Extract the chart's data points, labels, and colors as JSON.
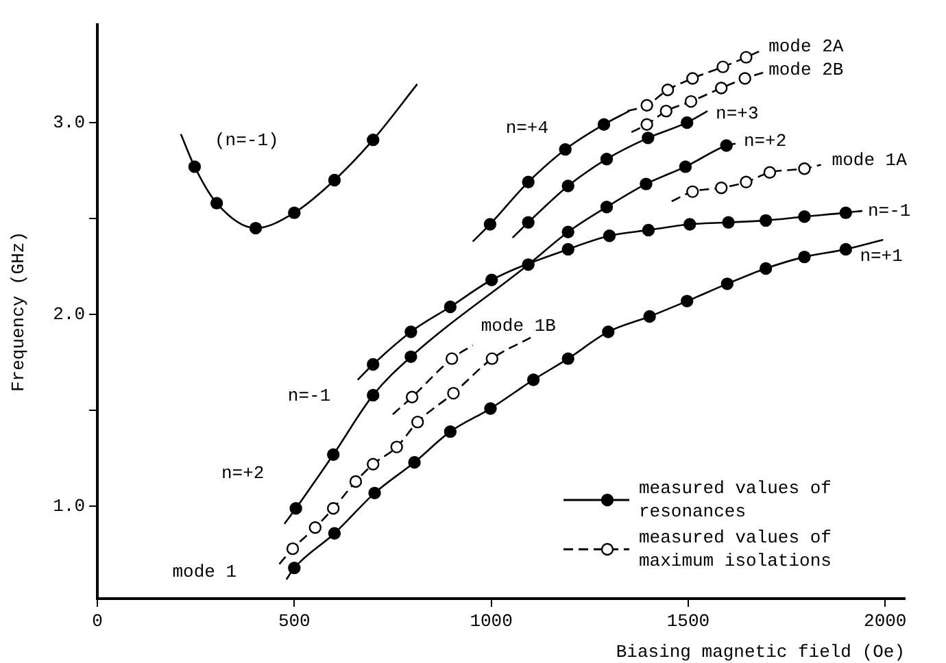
{
  "chart_data": {
    "type": "line",
    "xlabel": "Biasing magnetic field (Oe)",
    "ylabel": "Frequency (GHz)",
    "xlim": [
      0,
      2050
    ],
    "ylim": [
      0.52,
      3.51
    ],
    "xticks": [
      0,
      500,
      1000,
      1500,
      2000
    ],
    "yticks": [
      {
        "value": 1,
        "label": "1.0"
      },
      {
        "value": 1.5,
        "label": null
      },
      {
        "value": 2,
        "label": "2.0"
      },
      {
        "value": 2.5,
        "label": null
      },
      {
        "value": 3,
        "label": "3.0"
      }
    ],
    "grid": false,
    "legend": "bottom right",
    "series": [
      {
        "name": "(n=-1)",
        "color": "#000000",
        "marker": "none",
        "line_style": "solid",
        "x": [
          212,
          247,
          303,
          402,
          500,
          602,
          700,
          812
        ],
        "values": [
          2.94,
          2.77,
          2.58,
          2.45,
          2.53,
          2.7,
          2.91,
          3.2
        ]
      },
      {
        "name": "n=+1",
        "color": "#000000",
        "marker": "none",
        "line_style": "solid",
        "x": [
          480,
          500,
          602,
          704,
          805,
          896,
          998,
          1107,
          1195,
          1297,
          1402,
          1497,
          1599,
          1697,
          1795,
          1900,
          1995
        ],
        "values": [
          0.62,
          0.68,
          0.86,
          1.07,
          1.23,
          1.39,
          1.51,
          1.66,
          1.77,
          1.91,
          1.99,
          2.07,
          2.16,
          2.24,
          2.3,
          2.34,
          2.39
        ]
      },
      {
        "name": "n=+2",
        "color": "#000000",
        "marker": "none",
        "line_style": "solid",
        "x": [
          475,
          504,
          599,
          700,
          796,
          1094,
          1195,
          1293,
          1393,
          1493,
          1597,
          1620
        ],
        "values": [
          0.91,
          0.99,
          1.27,
          1.58,
          1.78,
          2.26,
          2.43,
          2.56,
          2.68,
          2.77,
          2.88,
          2.89
        ]
      },
      {
        "name": "n=-1",
        "color": "#000000",
        "marker": "none",
        "line_style": "solid",
        "x": [
          661,
          700,
          796,
          896,
          1001,
          1195,
          1300,
          1399,
          1504,
          1602,
          1697,
          1795,
          1900,
          1942
        ],
        "values": [
          1.66,
          1.74,
          1.91,
          2.04,
          2.18,
          2.34,
          2.41,
          2.44,
          2.47,
          2.48,
          2.49,
          2.51,
          2.53,
          2.54
        ]
      },
      {
        "name": "n=+3",
        "color": "#000000",
        "marker": "none",
        "line_style": "solid",
        "x": [
          1054,
          1094,
          1195,
          1293,
          1398,
          1497,
          1549
        ],
        "values": [
          2.4,
          2.48,
          2.67,
          2.81,
          2.92,
          3.0,
          3.06
        ]
      },
      {
        "name": "n=+4",
        "color": "#000000",
        "marker": "none",
        "line_style": "solid",
        "x": [
          953,
          997,
          1094,
          1188,
          1286,
          1350
        ],
        "values": [
          2.38,
          2.47,
          2.69,
          2.86,
          2.99,
          3.06
        ]
      },
      {
        "name": "mode 1",
        "color": "#000000",
        "marker": "none",
        "line_style": "dashed",
        "x": [
          462,
          496,
          553,
          599,
          656,
          700,
          760,
          813,
          904,
          1002,
          1100
        ],
        "values": [
          0.7,
          0.78,
          0.89,
          0.99,
          1.13,
          1.22,
          1.31,
          1.44,
          1.59,
          1.77,
          1.88
        ]
      },
      {
        "name": "mode 1B",
        "color": "#000000",
        "marker": "none",
        "line_style": "dashed",
        "x": [
          750,
          799,
          900,
          953
        ],
        "values": [
          1.48,
          1.57,
          1.77,
          1.84
        ]
      },
      {
        "name": "mode 2A",
        "color": "#000000",
        "marker": "none",
        "line_style": "dashed",
        "x": [
          1346,
          1395,
          1448,
          1511,
          1588,
          1647,
          1690
        ],
        "values": [
          3.06,
          3.09,
          3.17,
          3.23,
          3.29,
          3.34,
          3.38
        ]
      },
      {
        "name": "mode 2B",
        "color": "#000000",
        "marker": "none",
        "line_style": "dashed",
        "x": [
          1356,
          1395,
          1444,
          1507,
          1584,
          1644,
          1690
        ],
        "values": [
          2.95,
          2.99,
          3.06,
          3.11,
          3.18,
          3.23,
          3.26
        ]
      },
      {
        "name": "mode 1A",
        "color": "#000000",
        "marker": "none",
        "line_style": "dashed",
        "x": [
          1458,
          1511,
          1584,
          1647,
          1707,
          1795,
          1837
        ],
        "values": [
          2.59,
          2.64,
          2.66,
          2.69,
          2.74,
          2.76,
          2.78
        ]
      },
      {
        "type": "scatter",
        "name": "measured values of resonances",
        "color": "#000000",
        "marker": "circle",
        "line_style": "solid",
        "x": [
          247,
          303,
          402,
          500,
          602,
          700,
          500,
          602,
          704,
          805,
          896,
          998,
          1107,
          1195,
          1297,
          1402,
          1497,
          1599,
          1697,
          1795,
          1900,
          504,
          599,
          700,
          796,
          1094,
          1195,
          1293,
          1393,
          1493,
          1597,
          700,
          796,
          896,
          1001,
          1195,
          1300,
          1399,
          1504,
          1602,
          1697,
          1795,
          1900,
          1094,
          1195,
          1293,
          1398,
          1497,
          997,
          1094,
          1188,
          1286
        ],
        "values": [
          2.77,
          2.58,
          2.45,
          2.53,
          2.7,
          2.91,
          0.68,
          0.86,
          1.07,
          1.23,
          1.39,
          1.51,
          1.66,
          1.77,
          1.91,
          1.99,
          2.07,
          2.16,
          2.24,
          2.3,
          2.34,
          0.99,
          1.27,
          1.58,
          1.78,
          2.26,
          2.43,
          2.56,
          2.68,
          2.77,
          2.88,
          1.74,
          1.91,
          2.04,
          2.18,
          2.34,
          2.41,
          2.44,
          2.47,
          2.48,
          2.49,
          2.51,
          2.53,
          2.48,
          2.67,
          2.81,
          2.92,
          3.0,
          2.47,
          2.69,
          2.86,
          2.99
        ]
      },
      {
        "type": "scatter",
        "name": "measured values of maximum isolations",
        "color": "#ffffff",
        "marker": "circle",
        "line_style": "dashed",
        "x": [
          496,
          553,
          599,
          656,
          700,
          760,
          813,
          904,
          1002,
          799,
          900,
          1395,
          1448,
          1511,
          1588,
          1647,
          1395,
          1444,
          1507,
          1584,
          1644,
          1511,
          1584,
          1647,
          1707,
          1795
        ],
        "values": [
          0.78,
          0.89,
          0.99,
          1.13,
          1.22,
          1.31,
          1.44,
          1.59,
          1.77,
          1.57,
          1.77,
          3.09,
          3.17,
          3.23,
          3.29,
          3.34,
          2.99,
          3.06,
          3.11,
          3.18,
          3.23,
          2.64,
          2.66,
          2.69,
          2.74,
          2.76
        ]
      }
    ]
  }
}
